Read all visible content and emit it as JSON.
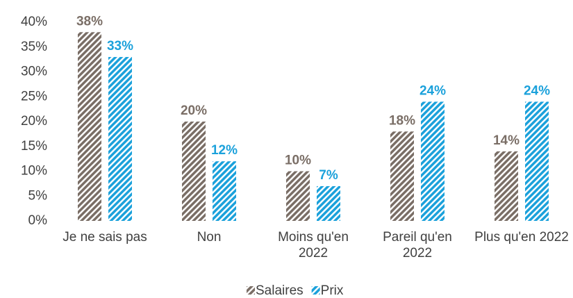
{
  "chart_data": {
    "type": "bar",
    "categories": [
      "Je ne sais pas",
      "Non",
      "Moins qu'en 2022",
      "Pareil qu'en 2022",
      "Plus qu'en 2022"
    ],
    "series": [
      {
        "name": "Salaires",
        "color": "#7a6e66",
        "values": [
          38,
          20,
          10,
          18,
          14
        ],
        "value_labels": [
          "38%",
          "20%",
          "10%",
          "18%",
          "14%"
        ]
      },
      {
        "name": "Prix",
        "color": "#1ba1db",
        "values": [
          33,
          12,
          7,
          24,
          24
        ],
        "value_labels": [
          "33%",
          "12%",
          "7%",
          "24%",
          "24%"
        ]
      }
    ],
    "ylim": [
      0,
      40
    ],
    "yticks": [
      {
        "value": 0,
        "label": "0%"
      },
      {
        "value": 5,
        "label": "5%"
      },
      {
        "value": 10,
        "label": "10%"
      },
      {
        "value": 15,
        "label": "15%"
      },
      {
        "value": 20,
        "label": "20%"
      },
      {
        "value": 25,
        "label": "25%"
      },
      {
        "value": 30,
        "label": "30%"
      },
      {
        "value": 35,
        "label": "35%"
      },
      {
        "value": 40,
        "label": "40%"
      }
    ],
    "legend": "bottom"
  }
}
